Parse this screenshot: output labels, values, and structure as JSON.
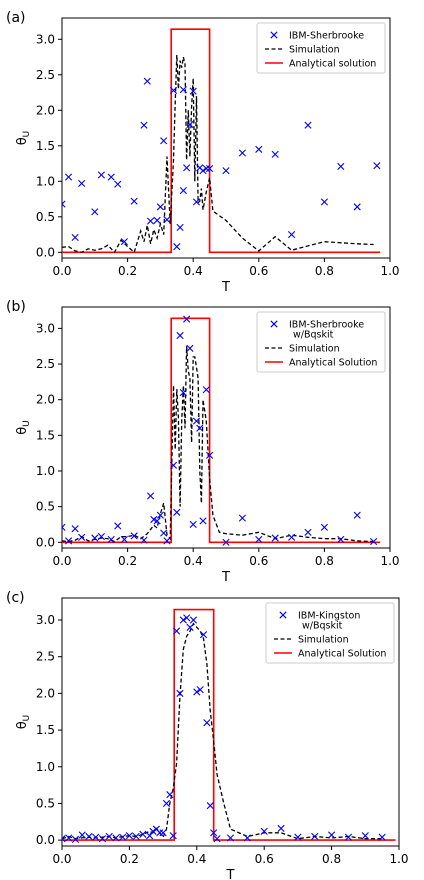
{
  "chart_data": [
    {
      "type": "line",
      "panel_label": "(a)",
      "xlabel": "T",
      "ylabel": "θU",
      "xlim": [
        0.0,
        1.0
      ],
      "ylim": [
        -0.08,
        3.3
      ],
      "xticks": [
        0.0,
        0.2,
        0.4,
        0.6,
        0.8,
        1.0
      ],
      "yticks": [
        0.0,
        0.5,
        1.0,
        1.5,
        2.0,
        2.5,
        3.0
      ],
      "legend": {
        "position": "top-right",
        "entries": [
          "IBM-Sherbrooke",
          "Simulation",
          "Analytical solution"
        ]
      },
      "series": [
        {
          "name": "IBM-Sherbrooke",
          "kind": "scatter",
          "color": "#0000ff",
          "x": [
            0.0,
            0.02,
            0.04,
            0.06,
            0.1,
            0.12,
            0.15,
            0.17,
            0.19,
            0.22,
            0.25,
            0.26,
            0.27,
            0.29,
            0.3,
            0.31,
            0.32,
            0.34,
            0.35,
            0.36,
            0.37,
            0.37,
            0.38,
            0.39,
            0.4,
            0.41,
            0.42,
            0.43,
            0.44,
            0.45,
            0.5,
            0.55,
            0.6,
            0.65,
            0.7,
            0.75,
            0.8,
            0.85,
            0.9,
            0.96
          ],
          "y": [
            0.68,
            1.06,
            0.21,
            0.97,
            0.57,
            1.09,
            1.06,
            0.96,
            0.15,
            0.72,
            1.79,
            2.41,
            0.44,
            0.45,
            0.64,
            1.57,
            0.46,
            2.28,
            0.08,
            0.35,
            2.29,
            0.87,
            1.19,
            1.8,
            2.27,
            0.71,
            1.19,
            1.15,
            1.18,
            1.18,
            1.15,
            1.4,
            1.45,
            1.38,
            0.25,
            1.79,
            0.71,
            1.21,
            0.64,
            1.22
          ]
        },
        {
          "name": "Simulation",
          "kind": "line",
          "color": "#000000",
          "dashed": true,
          "x": [
            0.0,
            0.02,
            0.04,
            0.06,
            0.08,
            0.1,
            0.12,
            0.14,
            0.16,
            0.18,
            0.2,
            0.22,
            0.24,
            0.25,
            0.26,
            0.27,
            0.28,
            0.29,
            0.3,
            0.31,
            0.32,
            0.33,
            0.34,
            0.345,
            0.35,
            0.355,
            0.36,
            0.365,
            0.37,
            0.375,
            0.38,
            0.385,
            0.39,
            0.395,
            0.4,
            0.405,
            0.41,
            0.415,
            0.42,
            0.425,
            0.43,
            0.44,
            0.45,
            0.46,
            0.5,
            0.55,
            0.6,
            0.65,
            0.7,
            0.8,
            0.9,
            0.95
          ],
          "y": [
            0.07,
            0.08,
            0.02,
            0.0,
            0.05,
            0.03,
            0.05,
            0.1,
            0.0,
            0.17,
            0.08,
            0.0,
            0.3,
            0.15,
            0.38,
            0.12,
            0.32,
            0.2,
            0.4,
            0.25,
            1.35,
            0.4,
            1.3,
            2.1,
            2.78,
            2.3,
            2.7,
            2.6,
            2.75,
            2.65,
            1.3,
            2.0,
            1.35,
            2.05,
            2.45,
            1.0,
            2.2,
            0.7,
            0.72,
            0.9,
            0.6,
            0.85,
            1.05,
            0.58,
            0.45,
            0.2,
            0.02,
            0.22,
            0.03,
            0.15,
            0.12,
            0.11
          ]
        },
        {
          "name": "Analytical solution",
          "kind": "step",
          "color": "#ff0000",
          "x": [
            0.0,
            0.333,
            0.333,
            0.45,
            0.45,
            0.97
          ],
          "y": [
            0.0,
            0.0,
            3.1416,
            3.1416,
            0.0,
            0.0
          ]
        }
      ]
    },
    {
      "type": "line",
      "panel_label": "(b)",
      "xlabel": "T",
      "ylabel": "θU",
      "xlim": [
        0.0,
        1.0
      ],
      "ylim": [
        -0.08,
        3.3
      ],
      "xticks": [
        0.0,
        0.2,
        0.4,
        0.6,
        0.8,
        1.0
      ],
      "yticks": [
        0.0,
        0.5,
        1.0,
        1.5,
        2.0,
        2.5,
        3.0
      ],
      "legend": {
        "position": "top-right",
        "entries": [
          "IBM-Sherbrooke\nw/Bqskit",
          "Simulation",
          "Analytical Solution"
        ]
      },
      "series": [
        {
          "name": "IBM-Sherbrooke w/Bqskit",
          "kind": "scatter",
          "color": "#0000ff",
          "x": [
            0.0,
            0.02,
            0.04,
            0.06,
            0.1,
            0.12,
            0.15,
            0.17,
            0.19,
            0.22,
            0.25,
            0.27,
            0.28,
            0.29,
            0.3,
            0.31,
            0.32,
            0.34,
            0.35,
            0.36,
            0.37,
            0.38,
            0.39,
            0.4,
            0.41,
            0.42,
            0.43,
            0.44,
            0.45,
            0.5,
            0.55,
            0.6,
            0.65,
            0.7,
            0.75,
            0.8,
            0.85,
            0.9,
            0.95
          ],
          "y": [
            0.21,
            0.02,
            0.19,
            0.07,
            0.06,
            0.08,
            0.04,
            0.23,
            0.04,
            0.09,
            0.03,
            0.65,
            0.32,
            0.3,
            0.38,
            0.13,
            0.02,
            1.08,
            0.42,
            2.9,
            2.1,
            3.13,
            2.72,
            0.25,
            1.7,
            1.6,
            0.3,
            2.14,
            1.22,
            0.0,
            0.34,
            0.04,
            0.06,
            0.07,
            0.14,
            0.21,
            0.04,
            0.38,
            0.01
          ]
        },
        {
          "name": "Simulation",
          "kind": "line",
          "color": "#000000",
          "dashed": true,
          "x": [
            0.0,
            0.02,
            0.04,
            0.06,
            0.08,
            0.1,
            0.12,
            0.14,
            0.16,
            0.18,
            0.2,
            0.22,
            0.24,
            0.26,
            0.28,
            0.29,
            0.3,
            0.31,
            0.32,
            0.33,
            0.34,
            0.345,
            0.35,
            0.355,
            0.36,
            0.365,
            0.37,
            0.375,
            0.38,
            0.385,
            0.39,
            0.395,
            0.4,
            0.405,
            0.41,
            0.415,
            0.42,
            0.425,
            0.43,
            0.44,
            0.45,
            0.46,
            0.48,
            0.5,
            0.55,
            0.6,
            0.65,
            0.7,
            0.75,
            0.8,
            0.85,
            0.9,
            0.95
          ],
          "y": [
            0.02,
            0.01,
            0.03,
            0.08,
            0.02,
            0.04,
            0.06,
            0.05,
            0.01,
            0.08,
            0.08,
            0.1,
            0.05,
            0.12,
            0.24,
            0.2,
            0.4,
            0.55,
            0.1,
            0.05,
            2.2,
            1.3,
            2.15,
            1.75,
            0.5,
            1.7,
            2.2,
            1.6,
            2.75,
            2.4,
            2.3,
            1.4,
            2.6,
            2.6,
            2.45,
            2.3,
            1.0,
            0.55,
            2.0,
            1.7,
            0.9,
            0.38,
            0.14,
            0.12,
            0.1,
            0.14,
            0.05,
            0.1,
            0.07,
            0.05,
            0.05,
            0.02,
            0.01
          ]
        },
        {
          "name": "Analytical Solution",
          "kind": "step",
          "color": "#ff0000",
          "x": [
            0.0,
            0.333,
            0.333,
            0.45,
            0.45,
            0.97
          ],
          "y": [
            0.0,
            0.0,
            3.1416,
            3.1416,
            0.0,
            0.0
          ]
        }
      ]
    },
    {
      "type": "line",
      "panel_label": "(c)",
      "xlabel": "T",
      "ylabel": "θU",
      "xlim": [
        0.0,
        1.0
      ],
      "ylim": [
        -0.08,
        3.3
      ],
      "xticks": [
        0.0,
        0.2,
        0.4,
        0.6,
        0.8,
        1.0
      ],
      "yticks": [
        0.0,
        0.5,
        1.0,
        1.5,
        2.0,
        2.5,
        3.0
      ],
      "legend": {
        "position": "top-right",
        "entries": [
          "IBM-Kingston\nw/Bqskit",
          "Simulation",
          "Analytical Solution"
        ]
      },
      "series": [
        {
          "name": "IBM-Kingston w/Bqskit",
          "kind": "scatter",
          "color": "#0000ff",
          "x": [
            0.0,
            0.02,
            0.04,
            0.06,
            0.08,
            0.1,
            0.12,
            0.14,
            0.16,
            0.18,
            0.2,
            0.22,
            0.24,
            0.26,
            0.27,
            0.28,
            0.29,
            0.3,
            0.31,
            0.32,
            0.33,
            0.34,
            0.35,
            0.36,
            0.37,
            0.38,
            0.39,
            0.4,
            0.41,
            0.42,
            0.43,
            0.44,
            0.45,
            0.46,
            0.5,
            0.55,
            0.6,
            0.65,
            0.7,
            0.75,
            0.8,
            0.85,
            0.9,
            0.95
          ],
          "y": [
            0.02,
            0.03,
            0.01,
            0.07,
            0.05,
            0.04,
            0.02,
            0.05,
            0.03,
            0.04,
            0.06,
            0.05,
            0.08,
            0.06,
            0.12,
            0.15,
            0.1,
            0.1,
            0.5,
            0.62,
            0.06,
            2.85,
            2.0,
            3.0,
            3.03,
            2.9,
            3.0,
            2.02,
            2.05,
            2.8,
            1.6,
            0.47,
            0.1,
            0.02,
            0.03,
            0.03,
            0.12,
            0.16,
            0.04,
            0.05,
            0.07,
            0.04,
            0.06,
            0.04
          ]
        },
        {
          "name": "Simulation",
          "kind": "line",
          "color": "#000000",
          "dashed": true,
          "x": [
            0.0,
            0.02,
            0.04,
            0.06,
            0.08,
            0.1,
            0.12,
            0.14,
            0.16,
            0.18,
            0.2,
            0.22,
            0.24,
            0.26,
            0.27,
            0.28,
            0.29,
            0.3,
            0.31,
            0.32,
            0.33,
            0.34,
            0.35,
            0.36,
            0.37,
            0.38,
            0.39,
            0.4,
            0.41,
            0.42,
            0.43,
            0.44,
            0.45,
            0.46,
            0.48,
            0.5,
            0.55,
            0.6,
            0.65,
            0.7,
            0.75,
            0.8,
            0.85,
            0.9,
            0.95
          ],
          "y": [
            0.02,
            0.05,
            0.02,
            0.03,
            0.04,
            0.03,
            0.04,
            0.05,
            0.03,
            0.05,
            0.06,
            0.05,
            0.08,
            0.12,
            0.1,
            0.16,
            0.1,
            0.04,
            0.15,
            0.5,
            0.7,
            1.05,
            1.95,
            2.6,
            2.78,
            2.85,
            2.95,
            2.9,
            2.85,
            2.75,
            2.4,
            1.75,
            1.35,
            0.9,
            0.5,
            0.15,
            0.05,
            0.1,
            0.1,
            0.02,
            0.05,
            0.03,
            0.05,
            0.02,
            0.02
          ]
        },
        {
          "name": "Analytical Solution",
          "kind": "step",
          "color": "#ff0000",
          "x": [
            0.0,
            0.333,
            0.333,
            0.45,
            0.45,
            0.99
          ],
          "y": [
            0.0,
            0.0,
            3.1416,
            3.1416,
            0.0,
            0.0
          ]
        }
      ]
    }
  ]
}
